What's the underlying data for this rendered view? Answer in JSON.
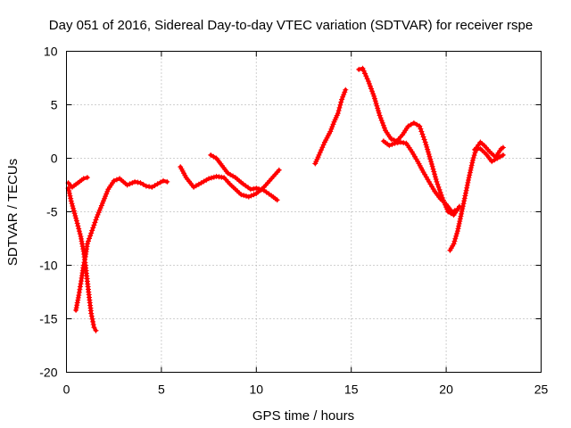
{
  "chart_data": {
    "type": "scatter",
    "title": "Day 051 of 2016, Sidereal Day-to-day VTEC variation (SDTVAR) for receiver rspe",
    "xlabel": "GPS time / hours",
    "ylabel": "SDTVAR / TECUs",
    "xlim": [
      0,
      25
    ],
    "ylim": [
      -20,
      10
    ],
    "xticks": [
      "0",
      "5",
      "10",
      "15",
      "20",
      "25"
    ],
    "yticks": [
      "10",
      "5",
      "0",
      "-5",
      "-10",
      "-15",
      "-20"
    ],
    "grid": true,
    "marker": "plus",
    "color": "#ff0000",
    "series": [
      {
        "points": [
          [
            0.1,
            -2.3
          ],
          [
            0.3,
            -2.7
          ],
          [
            0.6,
            -2.3
          ],
          [
            0.9,
            -1.9
          ],
          [
            1.1,
            -1.8
          ]
        ]
      },
      {
        "points": [
          [
            0.1,
            -2.8
          ],
          [
            0.25,
            -4.0
          ],
          [
            0.5,
            -5.6
          ],
          [
            0.75,
            -7.3
          ],
          [
            0.9,
            -8.7
          ],
          [
            1.0,
            -10.0
          ],
          [
            1.1,
            -11.5
          ],
          [
            1.2,
            -13.0
          ],
          [
            1.3,
            -14.5
          ],
          [
            1.45,
            -15.8
          ],
          [
            1.55,
            -16.1
          ]
        ]
      },
      {
        "points": [
          [
            0.5,
            -14.2
          ],
          [
            0.65,
            -12.8
          ],
          [
            0.8,
            -11.2
          ],
          [
            0.9,
            -10.0
          ],
          [
            1.0,
            -9.2
          ],
          [
            1.1,
            -8.0
          ],
          [
            1.3,
            -7.0
          ],
          [
            1.6,
            -5.5
          ],
          [
            1.9,
            -4.2
          ],
          [
            2.2,
            -2.9
          ],
          [
            2.5,
            -2.1
          ],
          [
            2.8,
            -1.9
          ],
          [
            3.2,
            -2.5
          ],
          [
            3.6,
            -2.2
          ],
          [
            3.9,
            -2.3
          ],
          [
            4.2,
            -2.6
          ],
          [
            4.5,
            -2.7
          ],
          [
            4.8,
            -2.4
          ],
          [
            5.1,
            -2.1
          ],
          [
            5.3,
            -2.2
          ]
        ]
      },
      {
        "points": [
          [
            6.0,
            -0.8
          ],
          [
            6.3,
            -1.8
          ],
          [
            6.7,
            -2.7
          ],
          [
            7.1,
            -2.3
          ],
          [
            7.5,
            -1.9
          ],
          [
            7.9,
            -1.7
          ],
          [
            8.3,
            -1.8
          ],
          [
            8.6,
            -2.4
          ],
          [
            8.9,
            -2.9
          ],
          [
            9.2,
            -3.4
          ],
          [
            9.6,
            -3.6
          ],
          [
            10.0,
            -3.3
          ],
          [
            10.4,
            -2.7
          ],
          [
            10.8,
            -1.9
          ],
          [
            11.2,
            -1.1
          ]
        ]
      },
      {
        "points": [
          [
            7.6,
            0.3
          ],
          [
            7.9,
            0.0
          ],
          [
            8.2,
            -0.7
          ],
          [
            8.5,
            -1.4
          ],
          [
            8.9,
            -1.8
          ],
          [
            9.3,
            -2.4
          ],
          [
            9.7,
            -2.9
          ],
          [
            10.0,
            -2.8
          ],
          [
            10.4,
            -3.0
          ],
          [
            10.8,
            -3.5
          ],
          [
            11.1,
            -3.9
          ]
        ]
      },
      {
        "points": [
          [
            13.1,
            -0.5
          ],
          [
            13.3,
            0.3
          ],
          [
            13.6,
            1.5
          ],
          [
            13.9,
            2.5
          ],
          [
            14.1,
            3.4
          ],
          [
            14.3,
            4.2
          ],
          [
            14.5,
            5.5
          ],
          [
            14.7,
            6.4
          ]
        ]
      },
      {
        "points": [
          [
            15.4,
            8.3
          ],
          [
            15.6,
            8.4
          ],
          [
            15.9,
            7.2
          ],
          [
            16.2,
            5.8
          ],
          [
            16.5,
            4.0
          ],
          [
            16.8,
            2.6
          ],
          [
            17.1,
            1.8
          ],
          [
            17.4,
            1.6
          ],
          [
            17.7,
            2.2
          ],
          [
            18.0,
            3.0
          ],
          [
            18.3,
            3.3
          ],
          [
            18.6,
            3.0
          ],
          [
            18.9,
            1.5
          ],
          [
            19.2,
            -0.3
          ],
          [
            19.5,
            -2.2
          ],
          [
            19.8,
            -3.7
          ],
          [
            20.1,
            -5.0
          ],
          [
            20.4,
            -5.3
          ],
          [
            20.7,
            -4.5
          ]
        ]
      },
      {
        "points": [
          [
            16.7,
            1.6
          ],
          [
            17.0,
            1.2
          ],
          [
            17.3,
            1.4
          ],
          [
            17.6,
            1.5
          ],
          [
            17.9,
            1.4
          ],
          [
            18.2,
            0.6
          ],
          [
            18.5,
            -0.3
          ],
          [
            18.8,
            -1.3
          ],
          [
            19.1,
            -2.2
          ],
          [
            19.4,
            -3.1
          ],
          [
            19.7,
            -3.8
          ],
          [
            20.0,
            -4.3
          ],
          [
            20.3,
            -5.0
          ],
          [
            20.6,
            -4.8
          ]
        ]
      },
      {
        "points": [
          [
            20.2,
            -8.6
          ],
          [
            20.4,
            -8.0
          ],
          [
            20.6,
            -6.8
          ],
          [
            20.8,
            -5.2
          ],
          [
            21.0,
            -3.5
          ],
          [
            21.2,
            -1.8
          ],
          [
            21.4,
            -0.2
          ],
          [
            21.6,
            1.0
          ],
          [
            21.8,
            1.5
          ],
          [
            22.0,
            1.2
          ],
          [
            22.3,
            0.6
          ],
          [
            22.6,
            0.1
          ],
          [
            22.9,
            0.9
          ],
          [
            23.0,
            1.0
          ]
        ]
      },
      {
        "points": [
          [
            21.5,
            0.8
          ],
          [
            21.8,
            0.9
          ],
          [
            22.1,
            0.4
          ],
          [
            22.4,
            -0.3
          ],
          [
            22.7,
            0.0
          ],
          [
            23.0,
            0.3
          ]
        ]
      }
    ]
  }
}
